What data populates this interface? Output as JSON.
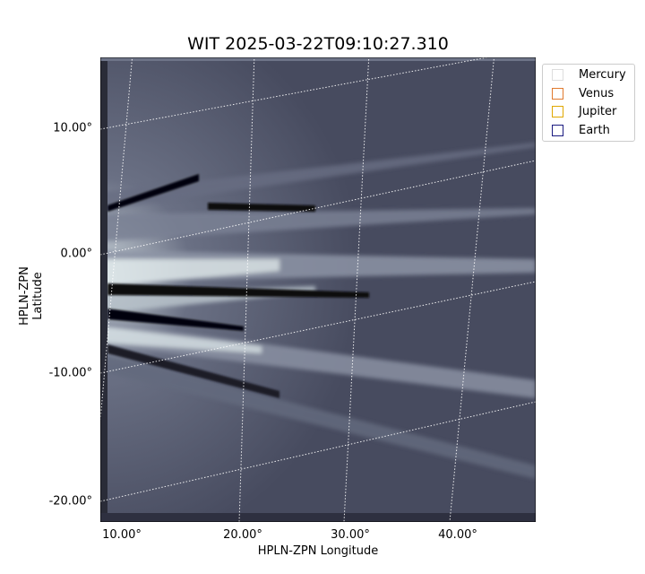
{
  "title": "WIT 2025-03-22T09:10:27.310",
  "axes": {
    "xlabel": "HPLN-ZPN Longitude",
    "ylabel": "HPLN-ZPN Latitude",
    "xticks": [
      "10.00°",
      "20.00°",
      "30.00°",
      "40.00°"
    ],
    "yticks": [
      "10.00°",
      "0.00°",
      "-10.00°",
      "-20.00°"
    ]
  },
  "legend": [
    {
      "label": "Mercury",
      "color": "#dddddd"
    },
    {
      "label": "Venus",
      "color": "#e07a2e"
    },
    {
      "label": "Jupiter",
      "color": "#e0a800"
    },
    {
      "label": "Earth",
      "color": "#1a1a80"
    }
  ],
  "colors": {
    "background": "#4a4e62",
    "highlight": "#dce8ea",
    "dark": "#050508"
  }
}
